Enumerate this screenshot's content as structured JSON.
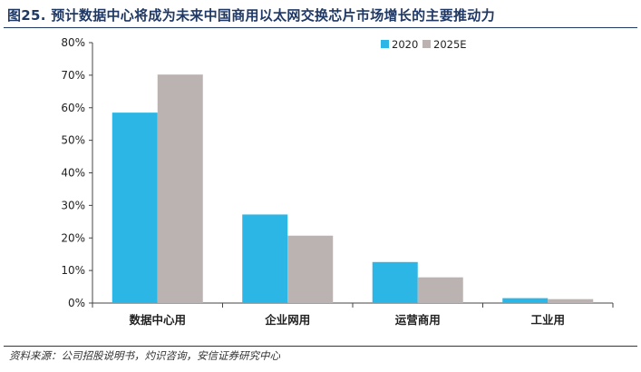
{
  "title": "图25. 预计数据中心将成为未来中国商用以太网交换芯片市场增长的主要推动力",
  "source": "资料来源：公司招股说明书，灼识咨询，安信证券研究中心",
  "colors": {
    "series_2020": "#2bb6e6",
    "series_2025E": "#bbb3b1",
    "title": "#1f3864"
  },
  "chart_data": {
    "type": "bar",
    "categories": [
      "数据中心用",
      "企业网用",
      "运营商用",
      "工业用"
    ],
    "series": [
      {
        "name": "2020",
        "values": [
          58.5,
          27.2,
          12.6,
          1.5
        ]
      },
      {
        "name": "2025E",
        "values": [
          70.2,
          20.7,
          7.9,
          1.2
        ]
      }
    ],
    "y_ticks": [
      "0%",
      "10%",
      "20%",
      "30%",
      "40%",
      "50%",
      "60%",
      "70%",
      "80%"
    ],
    "ylim": [
      0,
      80
    ],
    "grid": false,
    "legend": "top-right"
  }
}
